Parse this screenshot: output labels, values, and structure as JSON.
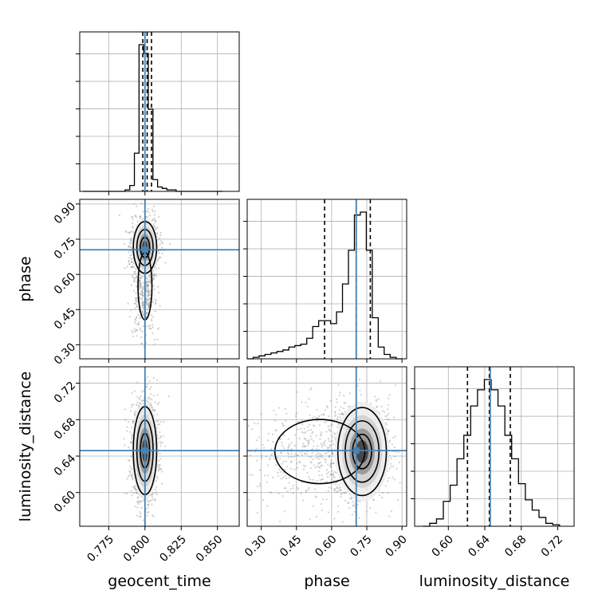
{
  "chart_data": {
    "type": "corner",
    "parameters": [
      "geocent_time",
      "phase",
      "luminosity_distance"
    ],
    "truths": {
      "geocent_time": 0.8,
      "phase": 0.705,
      "luminosity_distance": 0.646
    },
    "grid": true,
    "axes": {
      "geocent_time": {
        "range": [
          0.755,
          0.865
        ],
        "ticks": [
          0.775,
          0.8,
          0.825,
          0.85
        ],
        "tick_labels": [
          "0.775",
          "0.800",
          "0.825",
          "0.850"
        ]
      },
      "phase": {
        "range": [
          0.24,
          0.92
        ],
        "ticks": [
          0.3,
          0.45,
          0.6,
          0.75,
          0.9
        ],
        "tick_labels": [
          "0.30",
          "0.45",
          "0.60",
          "0.75",
          "0.90"
        ]
      },
      "luminosity_distance": {
        "range": [
          0.563,
          0.738
        ],
        "ticks": [
          0.6,
          0.64,
          0.68,
          0.72
        ],
        "tick_labels": [
          "0.60",
          "0.64",
          "0.68",
          "0.72"
        ]
      }
    },
    "histograms": {
      "geocent_time": {
        "edges": [
          0.7575,
          0.7607,
          0.7639,
          0.7671,
          0.7703,
          0.7735,
          0.7767,
          0.7799,
          0.7831,
          0.7863,
          0.7895,
          0.7927,
          0.7959,
          0.7991,
          0.8023,
          0.8055,
          0.8087,
          0.8119,
          0.8151,
          0.8183,
          0.8215,
          0.8247,
          0.8279,
          0.8311,
          0.8343,
          0.8375,
          0.8407,
          0.8439,
          0.8471,
          0.8503,
          0.8535
        ],
        "counts": [
          0,
          0,
          0,
          0,
          0,
          0,
          0,
          0,
          0,
          1,
          4,
          26,
          100,
          94,
          56,
          8,
          3,
          2,
          1,
          1,
          0,
          0,
          0,
          0,
          0,
          0,
          0,
          0,
          0,
          0
        ],
        "quantiles": [
          0.7985,
          0.8015,
          0.8045
        ]
      },
      "phase": {
        "edges": [
          0.24,
          0.2654,
          0.2908,
          0.3162,
          0.3416,
          0.367,
          0.3924,
          0.4178,
          0.4432,
          0.4686,
          0.494,
          0.5194,
          0.5448,
          0.5702,
          0.5956,
          0.621,
          0.6464,
          0.6718,
          0.6972,
          0.7226,
          0.748,
          0.7734,
          0.7988,
          0.8242,
          0.8496,
          0.875,
          0.9004
        ],
        "counts": [
          0,
          1,
          2,
          3,
          4,
          5,
          6,
          8,
          9,
          10,
          14,
          22,
          26,
          26,
          24,
          32,
          51,
          74,
          98,
          100,
          74,
          28,
          8,
          3,
          1,
          0
        ],
        "quantiles": [
          0.57,
          0.705,
          0.765
        ]
      },
      "luminosity_distance": {
        "edges": [
          0.572,
          0.5795,
          0.587,
          0.5945,
          0.602,
          0.6095,
          0.617,
          0.6245,
          0.632,
          0.6395,
          0.647,
          0.6545,
          0.662,
          0.6695,
          0.677,
          0.6845,
          0.692,
          0.6995,
          0.707,
          0.7145,
          0.722
        ],
        "counts": [
          0,
          2,
          5,
          17,
          28,
          46,
          62,
          82,
          93,
          100,
          93,
          82,
          62,
          46,
          29,
          18,
          11,
          6,
          2,
          1
        ],
        "quantiles": [
          0.621,
          0.645,
          0.668
        ]
      }
    },
    "joint": [
      {
        "x": "geocent_time",
        "y": "phase",
        "center": [
          0.8,
          0.715
        ],
        "sigma": [
          0.0035,
          0.048
        ],
        "rho": 0.0,
        "tail": {
          "center": [
            0.8,
            0.55
          ],
          "sigma": [
            0.003,
            0.09
          ],
          "weight": 0.3
        }
      },
      {
        "x": "geocent_time",
        "y": "luminosity_distance",
        "center": [
          0.8,
          0.646
        ],
        "sigma": [
          0.0035,
          0.021
        ],
        "rho": 0.0
      },
      {
        "x": "phase",
        "y": "luminosity_distance",
        "center": [
          0.73,
          0.645
        ],
        "sigma": [
          0.045,
          0.021
        ],
        "rho": 0.05,
        "tail": {
          "center": [
            0.55,
            0.645
          ],
          "sigma": [
            0.12,
            0.022
          ],
          "weight": 0.35
        }
      }
    ]
  }
}
